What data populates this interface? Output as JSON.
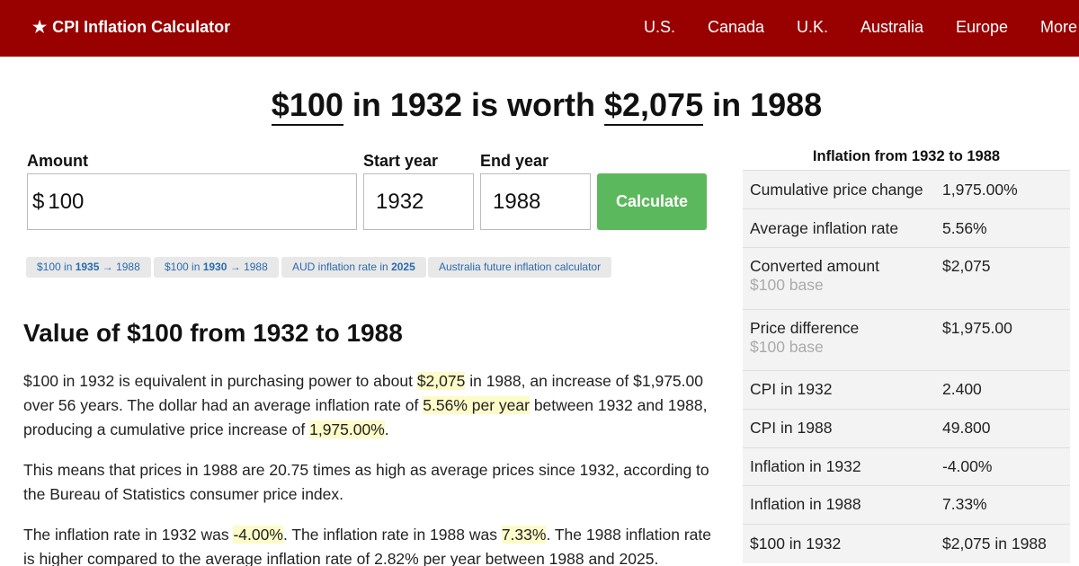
{
  "header": {
    "brand": "CPI Inflation Calculator",
    "brand_icon": "star",
    "nav": [
      "U.S.",
      "Canada",
      "U.K.",
      "Australia",
      "Europe",
      "More"
    ],
    "background_color": "#990000"
  },
  "headline": {
    "amount": "$100",
    "text_1": " in 1932 is worth ",
    "converted": "$2,075",
    "text_2": " in 1988"
  },
  "form": {
    "amount_label": "Amount",
    "currency_symbol": "$",
    "amount_value": "100",
    "start_label": "Start year",
    "start_value": "1932",
    "end_label": "End year",
    "end_value": "1988",
    "button_label": "Calculate",
    "button_color": "#5cb85c"
  },
  "chips": [
    {
      "pre": "$100 in ",
      "bold": "1935",
      "post": " → 1988"
    },
    {
      "pre": "$100 in ",
      "bold": "1930",
      "post": " → 1988"
    },
    {
      "pre": "AUD inflation rate in ",
      "bold": "2025",
      "post": ""
    },
    {
      "pre": "Australia future inflation calculator",
      "bold": "",
      "post": ""
    }
  ],
  "section_title": "Value of $100 from 1932 to 1988",
  "paragraphs": {
    "p1": {
      "t1": "$100 in 1932 is equivalent in purchasing power to about ",
      "h1": "$2,075",
      "t2": " in 1988, an increase of $1,975.00 over 56 years. The dollar had an average inflation rate of ",
      "h2": "5.56% per year",
      "t3": " between 1932 and 1988, producing a cumulative price increase of ",
      "h3": "1,975.00%",
      "t4": "."
    },
    "p2": "This means that prices in 1988 are 20.75 times as high as average prices since 1932, according to the Bureau of Statistics consumer price index.",
    "p3": {
      "t1": "The inflation rate in 1932 was ",
      "h1": "-4.00%",
      "t2": ". The inflation rate in 1988 was ",
      "h2": "7.33%",
      "t3": ". The 1988 inflation rate is higher compared to the average inflation rate of 2.82% per year between 1988 and 2025."
    }
  },
  "sidebar": {
    "title": "Inflation from 1932 to 1988",
    "rows": [
      {
        "label": "Cumulative price change",
        "sub": "",
        "value": "1,975.00%"
      },
      {
        "label": "Average inflation rate",
        "sub": "",
        "value": "5.56%"
      },
      {
        "label": "Converted amount",
        "sub": "$100 base",
        "value": "$2,075"
      },
      {
        "label": "Price difference",
        "sub": "$100 base",
        "value": "$1,975.00"
      },
      {
        "label": "CPI in 1932",
        "sub": "",
        "value": "2.400"
      },
      {
        "label": "CPI in 1988",
        "sub": "",
        "value": "49.800"
      },
      {
        "label": "Inflation in 1932",
        "sub": "",
        "value": "-4.00%"
      },
      {
        "label": "Inflation in 1988",
        "sub": "",
        "value": "7.33%"
      },
      {
        "label": "$100 in 1932",
        "sub": "",
        "value": "$2,075 in 1988"
      }
    ]
  }
}
